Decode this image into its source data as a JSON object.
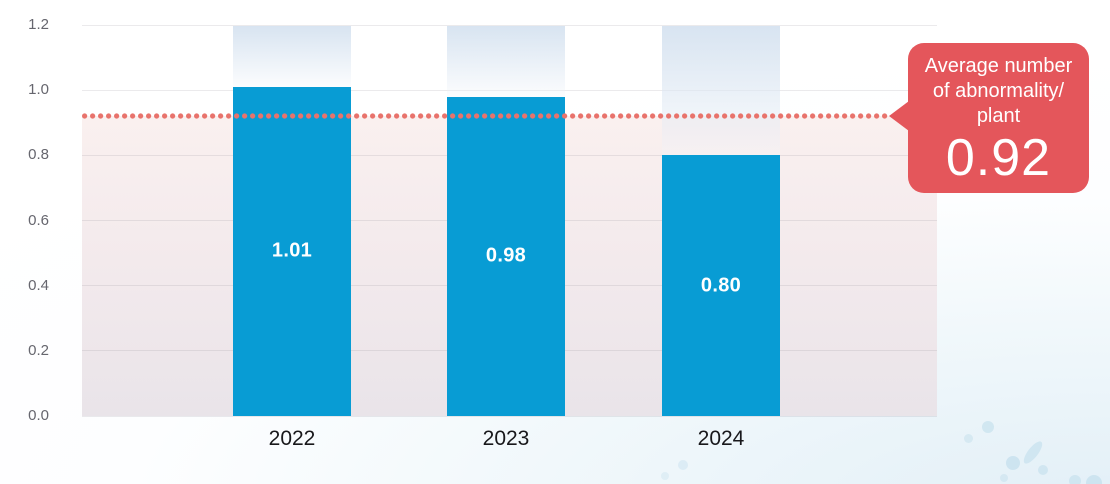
{
  "chart_data": {
    "type": "bar",
    "title": "",
    "xlabel": "",
    "ylabel": "",
    "categories": [
      "2022",
      "2023",
      "2024"
    ],
    "values": [
      1.01,
      0.98,
      0.8
    ],
    "value_labels": [
      "1.01",
      "0.98",
      "0.80"
    ],
    "ylim": [
      0,
      1.2
    ],
    "yticks": [
      0.0,
      0.2,
      0.4,
      0.6,
      0.8,
      1.0,
      1.2
    ],
    "ytick_labels": [
      "0.0",
      "0.2",
      "0.4",
      "0.6",
      "0.8",
      "1.0",
      "1.2"
    ],
    "grid": true,
    "legend": false,
    "average_line": {
      "value": 0.92,
      "style": "dotted",
      "label": "Average number of abnormality/plant",
      "value_label": "0.92"
    }
  },
  "callout": {
    "lines": [
      "Average number",
      "of abnormality/",
      "plant"
    ],
    "value": "0.92"
  },
  "colors": {
    "bar": "#089CD4",
    "bar_value_text": "#FFFFFF",
    "dotted_line": "#E8736C",
    "callout_bg": "#E4565B",
    "callout_text": "#FFFFFF",
    "shade_top": "#FAF0EF",
    "shade_mid": "#F2E9EC",
    "shade_bottom": "#E9E4E9",
    "ghost_column_top": "#D8E4F1",
    "ghost_column_bottom": "rgba(242,245,250,0.25)",
    "gridline": "rgba(145,140,150,0.18)",
    "y_axis_label": "#66666E",
    "x_axis_label": "#18181B",
    "decor_droplet": "#CDE4F0"
  },
  "decor": {
    "name": "water-droplet-decorations"
  }
}
